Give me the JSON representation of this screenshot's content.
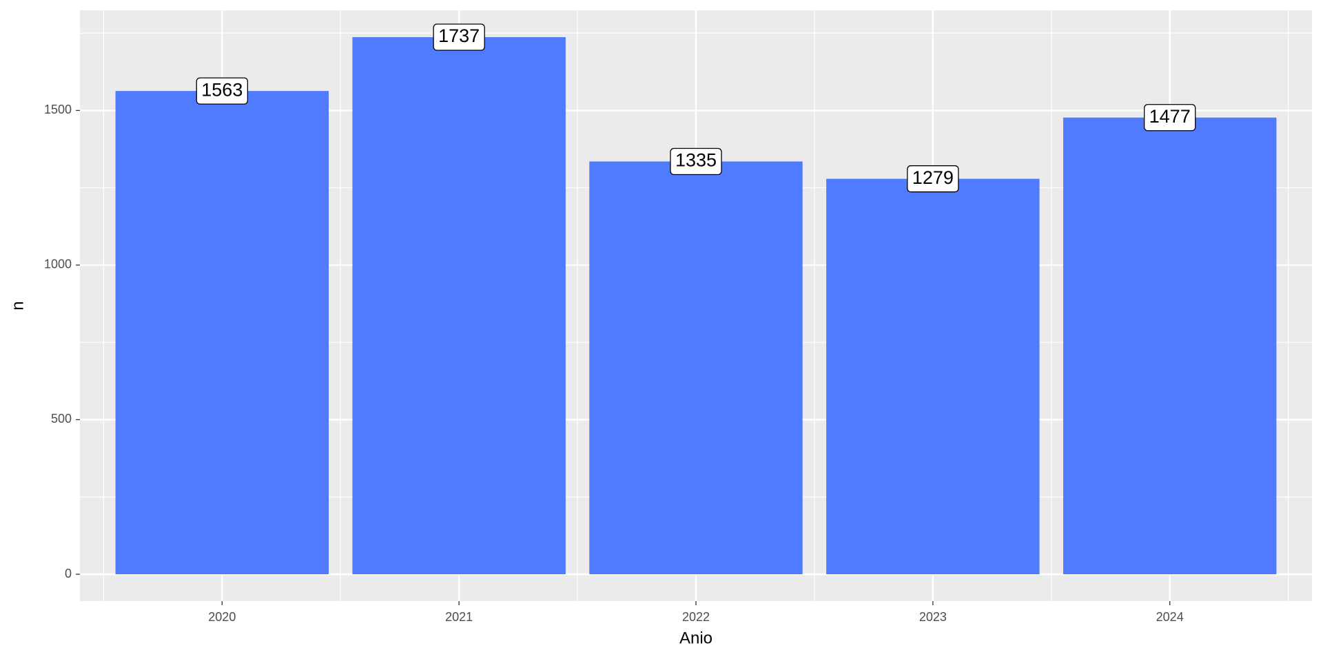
{
  "chart_data": {
    "type": "bar",
    "categories": [
      "2020",
      "2021",
      "2022",
      "2023",
      "2024"
    ],
    "values": [
      1563,
      1737,
      1335,
      1279,
      1477
    ],
    "color": "#507bff",
    "xlabel": "Anio",
    "ylabel": "n",
    "ylim": [
      -86.85,
      1823.85
    ],
    "yticks": [
      0,
      500,
      1000,
      1500
    ],
    "grid": true
  }
}
